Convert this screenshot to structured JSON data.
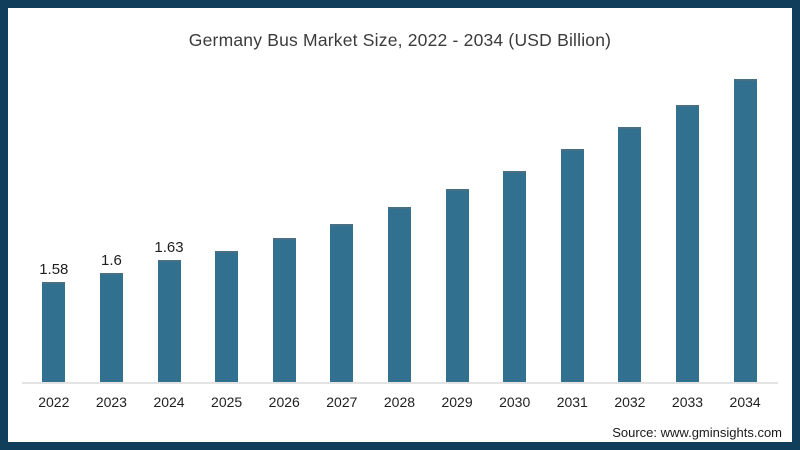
{
  "frame": {
    "border_color": "#113E5A",
    "background": "#FFFFFF"
  },
  "chart": {
    "title": "Germany Bus Market Size, 2022 - 2034 (USD Billion)",
    "source": "Source: www.gminsights.com"
  },
  "chart_data": {
    "type": "bar",
    "title": "Germany Bus Market Size, 2022 - 2034 (USD Billion)",
    "categories": [
      "2022",
      "2023",
      "2024",
      "2025",
      "2026",
      "2027",
      "2028",
      "2029",
      "2030",
      "2031",
      "2032",
      "2033",
      "2034"
    ],
    "values": [
      1.58,
      1.6,
      1.63,
      1.65,
      1.68,
      1.71,
      1.75,
      1.79,
      1.83,
      1.88,
      1.93,
      1.98,
      2.04
    ],
    "data_labels": [
      "1.58",
      "1.6",
      "1.63",
      "",
      "",
      "",
      "",
      "",
      "",
      "",
      "",
      "",
      ""
    ],
    "xlabel": "",
    "ylabel": "",
    "ylim": [
      1.35,
      2.11
    ],
    "grid": false,
    "legend": false,
    "y_axis_shown": false,
    "bar_color": "#31708F",
    "axis_line_color": "#E3E3E3",
    "source": "Source: www.gminsights.com"
  }
}
